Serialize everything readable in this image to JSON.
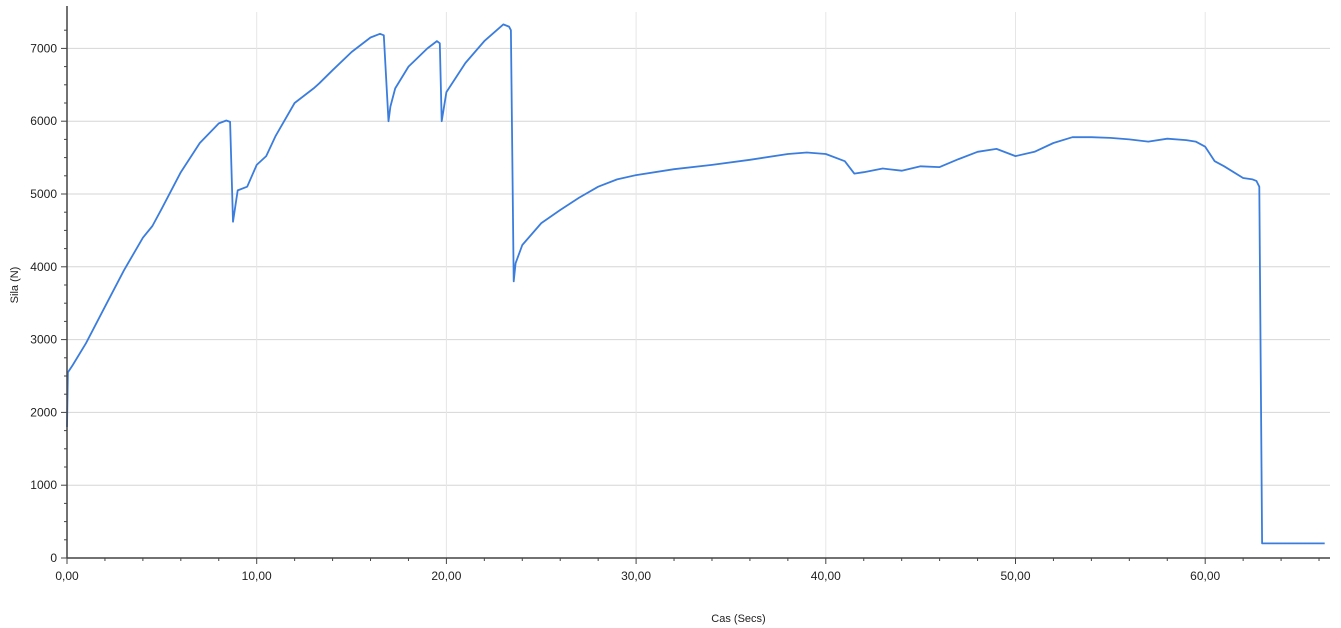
{
  "chart_data": {
    "type": "line",
    "title": "",
    "xlabel": "Cas (Secs)",
    "ylabel": "Sila (N)",
    "xlim": [
      0,
      66.5
    ],
    "ylim": [
      0,
      7500
    ],
    "x_ticks": [
      0,
      10,
      20,
      30,
      40,
      50,
      60
    ],
    "x_tick_labels": [
      "0,00",
      "10,00",
      "20,00",
      "30,00",
      "40,00",
      "50,00",
      "60,00"
    ],
    "y_ticks": [
      0,
      1000,
      2000,
      3000,
      4000,
      5000,
      6000,
      7000
    ],
    "y_tick_labels": [
      "0",
      "1000",
      "2000",
      "3000",
      "4000",
      "5000",
      "6000",
      "7000"
    ],
    "grid": true,
    "line_color": "#3b7ddd",
    "series": [
      {
        "x": [
          0,
          0.05,
          0.3,
          1,
          2,
          3,
          4,
          4.5,
          5,
          6,
          7,
          8,
          8.4,
          8.6,
          8.75,
          9.0,
          9.5,
          10.0,
          10.5,
          11,
          12,
          13,
          13.3,
          14,
          15,
          16,
          16.5,
          16.7,
          16.95,
          17.05,
          17.3,
          18,
          19,
          19.5,
          19.65,
          19.75,
          20,
          21,
          22,
          23,
          23.3,
          23.4,
          23.55,
          23.65,
          24,
          25,
          26,
          27,
          28,
          29,
          30,
          32,
          34,
          36,
          38,
          39,
          40,
          41,
          41.5,
          42,
          43,
          44,
          45,
          46,
          47,
          48,
          49,
          50,
          51,
          52,
          53,
          54,
          55,
          56,
          57,
          58,
          59,
          59.5,
          60,
          60.5,
          61,
          62,
          62.5,
          62.7,
          62.85,
          63.0,
          64,
          65,
          66.3
        ],
        "y": [
          1800,
          2550,
          2650,
          2950,
          3450,
          3950,
          4400,
          4560,
          4800,
          5300,
          5700,
          5970,
          6010,
          5990,
          4620,
          5050,
          5100,
          5400,
          5520,
          5800,
          6250,
          6450,
          6520,
          6700,
          6950,
          7150,
          7200,
          7180,
          6000,
          6200,
          6450,
          6750,
          7000,
          7100,
          7070,
          6000,
          6400,
          6800,
          7100,
          7330,
          7300,
          7250,
          3800,
          4050,
          4300,
          4600,
          4780,
          4950,
          5100,
          5200,
          5260,
          5340,
          5400,
          5470,
          5550,
          5570,
          5550,
          5450,
          5280,
          5300,
          5350,
          5320,
          5380,
          5370,
          5480,
          5580,
          5620,
          5520,
          5580,
          5700,
          5780,
          5780,
          5770,
          5750,
          5720,
          5760,
          5740,
          5720,
          5650,
          5450,
          5380,
          5220,
          5200,
          5180,
          5100,
          200,
          200,
          200,
          200
        ]
      }
    ]
  }
}
